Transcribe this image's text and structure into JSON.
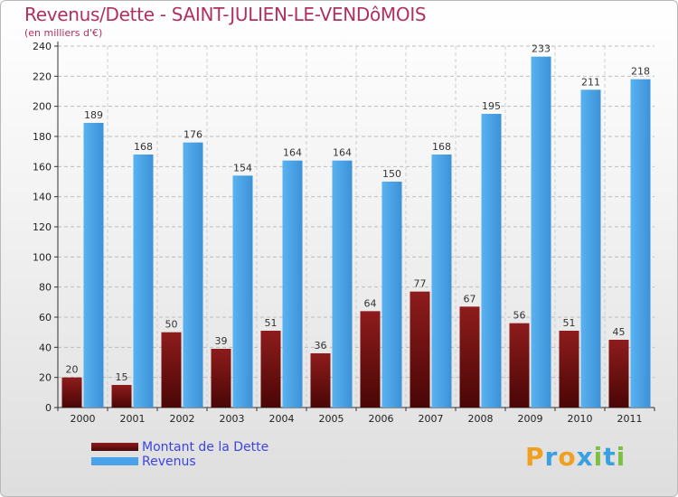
{
  "header": {
    "title": "Revenus/Dette - SAINT-JULIEN-LE-VENDôMOIS",
    "subtitle": "(en milliers d'€)"
  },
  "legend": {
    "items": [
      {
        "label": "Montant de la Dette",
        "color": "#7a1515"
      },
      {
        "label": "Revenus",
        "color": "#4aa3e8"
      }
    ]
  },
  "logo": {
    "letters": [
      {
        "ch": "P",
        "color": "#f0a020"
      },
      {
        "ch": "r",
        "color": "#3aa0e0"
      },
      {
        "ch": "o",
        "color": "#f0a020"
      },
      {
        "ch": "x",
        "color": "#3aa0e0"
      },
      {
        "ch": "i",
        "color": "#7cc043"
      },
      {
        "ch": "t",
        "color": "#3aa0e0"
      },
      {
        "ch": "i",
        "color": "#7cc043"
      }
    ]
  },
  "chart_data": {
    "type": "bar",
    "title": "Revenus/Dette - SAINT-JULIEN-LE-VENDôMOIS",
    "subtitle": "(en milliers d'€)",
    "categories": [
      "2000",
      "2001",
      "2002",
      "2003",
      "2004",
      "2005",
      "2006",
      "2007",
      "2008",
      "2009",
      "2010",
      "2011"
    ],
    "series": [
      {
        "name": "Montant de la Dette",
        "color": "#7a1515",
        "values": [
          20,
          15,
          50,
          39,
          51,
          36,
          64,
          77,
          67,
          56,
          51,
          45
        ]
      },
      {
        "name": "Revenus",
        "color": "#4aa3e8",
        "values": [
          189,
          168,
          176,
          154,
          164,
          164,
          150,
          168,
          195,
          233,
          211,
          218
        ]
      }
    ],
    "ylim": [
      0,
      240
    ],
    "yticks": [
      0,
      20,
      40,
      60,
      80,
      100,
      120,
      140,
      160,
      180,
      200,
      220,
      240
    ],
    "grid": true,
    "legend_position": "bottom-left"
  }
}
